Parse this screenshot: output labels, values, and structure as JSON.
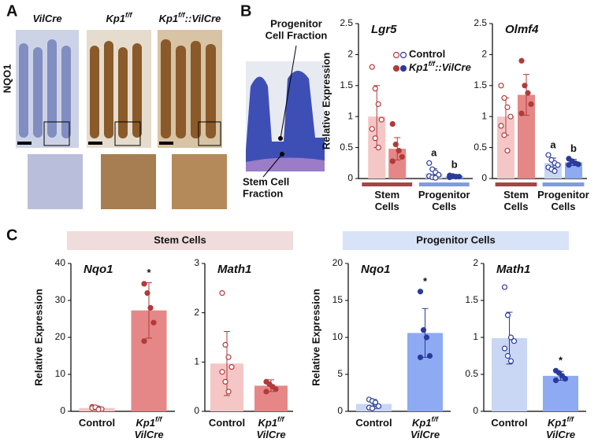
{
  "panel_labels": [
    "A",
    "B",
    "C"
  ],
  "panel_a": {
    "columns": [
      [
        "VilCre"
      ],
      [
        "Kp1",
        "f/f"
      ],
      [
        "Kp1",
        "f/f",
        "::VilCre"
      ]
    ],
    "row_label": "NQO1"
  },
  "schematic": {
    "progenitor_label": [
      "Progenitor",
      "Cell Fraction"
    ],
    "stem_label": [
      "Stem Cell",
      "Fraction"
    ]
  },
  "group_headers": [
    {
      "text": "Stem Cells",
      "color": "#f0dcdc"
    },
    {
      "text": "Progenitor Cells",
      "color": "#d9e3f7"
    }
  ],
  "chart_data": [
    {
      "type": "bar",
      "title": "Lgr5",
      "ylabel": "Relative  Expression",
      "legend": true,
      "categories": [
        [
          [
            "Stem"
          ],
          [
            "Cells"
          ]
        ],
        [
          [
            "Progenitor"
          ],
          [
            "Cells"
          ]
        ]
      ],
      "category_colors": [
        "#a84444",
        "#7f9ce0"
      ],
      "point_colors": [
        "#b23a3a",
        "#2b3a9c"
      ],
      "ylim": [
        0,
        2.5
      ],
      "yticks": [
        0,
        0.5,
        1,
        1.5,
        2,
        2.5
      ],
      "series": [
        {
          "name": [
            "Control"
          ],
          "colors": [
            "#f5c6c6",
            "#c9d6f4"
          ],
          "point_fill": [
            false,
            false
          ],
          "values": [
            1.0,
            0.08
          ],
          "errors": [
            0.5,
            0.08
          ],
          "points": [
            [
              1.8,
              1.45,
              1.2,
              0.95,
              0.8,
              0.65,
              0.5
            ],
            [
              0.25,
              0.15,
              0.1,
              0.06,
              0.04,
              0.02,
              0.01
            ]
          ],
          "annotations": [
            {
              "index": 1,
              "text": "a"
            }
          ]
        },
        {
          "name": [
            "Kp1",
            "f/f",
            "::VilCre"
          ],
          "colors": [
            "#e58787",
            "#8eaaf2"
          ],
          "point_fill": [
            true,
            true
          ],
          "values": [
            0.48,
            0.04
          ],
          "errors": [
            0.18,
            0.02
          ],
          "points": [
            [
              0.88,
              0.55,
              0.45,
              0.35,
              0.28
            ],
            [
              0.05,
              0.04,
              0.03,
              0.03,
              0.02
            ]
          ],
          "annotations": [
            {
              "index": 1,
              "text": "b"
            }
          ]
        }
      ]
    },
    {
      "type": "bar",
      "title": "Olmf4",
      "legend": false,
      "categories": [
        [
          [
            "Stem"
          ],
          [
            "Cells"
          ]
        ],
        [
          [
            "Progenitor"
          ],
          [
            "Cells"
          ]
        ]
      ],
      "category_colors": [
        "#a84444",
        "#7f9ce0"
      ],
      "point_colors": [
        "#b23a3a",
        "#2b3a9c"
      ],
      "ylim": [
        0,
        2.5
      ],
      "yticks": [
        0,
        0.5,
        1,
        1.5,
        2,
        2.5
      ],
      "series": [
        {
          "colors": [
            "#f5c6c6",
            "#c9d6f4"
          ],
          "point_fill": [
            false,
            false
          ],
          "values": [
            1.0,
            0.25
          ],
          "errors": [
            0.3,
            0.08
          ],
          "points": [
            [
              1.5,
              1.3,
              1.15,
              1.0,
              0.85,
              0.7,
              0.45
            ],
            [
              0.38,
              0.3,
              0.25,
              0.22,
              0.18,
              0.15,
              0.12
            ]
          ],
          "annotations": [
            {
              "index": 1,
              "text": "a"
            }
          ]
        },
        {
          "colors": [
            "#e58787",
            "#8eaaf2"
          ],
          "point_fill": [
            true,
            true
          ],
          "values": [
            1.35,
            0.26
          ],
          "errors": [
            0.33,
            0.05
          ],
          "points": [
            [
              1.9,
              1.5,
              1.38,
              1.2,
              1.05
            ],
            [
              0.32,
              0.28,
              0.25,
              0.23,
              0.22
            ]
          ],
          "annotations": [
            {
              "index": 1,
              "text": "b"
            }
          ]
        }
      ]
    },
    {
      "type": "bar",
      "title": "Nqo1",
      "ylabel": "Relative  Expression",
      "categories": [
        [
          [
            "Control"
          ]
        ],
        [
          [
            "Kp1",
            "f/f"
          ],
          [
            "VilCre"
          ]
        ]
      ],
      "point_colors": [
        "#b23a3a",
        "#b23a3a"
      ],
      "ylim": [
        0,
        40
      ],
      "yticks": [
        0,
        10,
        20,
        30,
        40
      ],
      "series": [
        {
          "colors": [
            "#f5c6c6",
            "#e58787"
          ],
          "point_fill": [
            false,
            true
          ],
          "values": [
            0.9,
            27.3
          ],
          "errors": [
            0.5,
            7.5
          ],
          "points": [
            [
              1.2,
              1.0,
              0.8,
              0.6,
              0.9,
              1.1,
              0.5
            ],
            [
              34.5,
              32,
              28,
              24,
              19
            ]
          ],
          "annotations": [
            {
              "index": 1,
              "text": "*"
            }
          ]
        }
      ]
    },
    {
      "type": "bar",
      "title": "Math1",
      "categories": [
        [
          [
            "Control"
          ]
        ],
        [
          [
            "Kp1",
            "f/f"
          ],
          [
            "VilCre"
          ]
        ]
      ],
      "point_colors": [
        "#b23a3a",
        "#b23a3a"
      ],
      "ylim": [
        0,
        3
      ],
      "yticks": [
        0,
        1,
        2,
        3
      ],
      "series": [
        {
          "colors": [
            "#f5c6c6",
            "#e58787"
          ],
          "point_fill": [
            false,
            true
          ],
          "values": [
            0.97,
            0.52
          ],
          "errors": [
            0.65,
            0.12
          ],
          "points": [
            [
              2.4,
              1.35,
              1.1,
              0.9,
              0.8,
              0.6,
              0.4
            ],
            [
              0.6,
              0.55,
              0.5,
              0.45,
              0.4
            ]
          ]
        }
      ]
    },
    {
      "type": "bar",
      "title": "Nqo1",
      "ylabel": "Relative  Expression",
      "categories": [
        [
          [
            "Control"
          ]
        ],
        [
          [
            "Kp1",
            "f/f"
          ],
          [
            "VilCre"
          ]
        ]
      ],
      "point_colors": [
        "#2b3a9c",
        "#2b3a9c"
      ],
      "ylim": [
        0,
        20
      ],
      "yticks": [
        0,
        5,
        10,
        15,
        20
      ],
      "series": [
        {
          "colors": [
            "#c9d6f4",
            "#8eaaf2"
          ],
          "point_fill": [
            false,
            true
          ],
          "values": [
            1.0,
            10.6
          ],
          "errors": [
            0.6,
            3.3
          ],
          "points": [
            [
              1.6,
              1.4,
              1.0,
              0.7,
              0.5,
              0.4,
              1.2
            ],
            [
              16.2,
              11,
              10,
              7.5,
              7.3
            ]
          ],
          "annotations": [
            {
              "index": 1,
              "text": "*"
            }
          ]
        }
      ]
    },
    {
      "type": "bar",
      "title": "Math1",
      "categories": [
        [
          [
            "Control"
          ]
        ],
        [
          [
            "Kp1",
            "f/f"
          ],
          [
            "VilCre"
          ]
        ]
      ],
      "point_colors": [
        "#2b3a9c",
        "#2b3a9c"
      ],
      "ylim": [
        0,
        2
      ],
      "yticks": [
        0,
        0.5,
        1,
        1.5,
        2
      ],
      "series": [
        {
          "colors": [
            "#c9d6f4",
            "#8eaaf2"
          ],
          "point_fill": [
            false,
            true
          ],
          "values": [
            0.99,
            0.48
          ],
          "errors": [
            0.35,
            0.06
          ],
          "points": [
            [
              1.68,
              1.3,
              1.0,
              0.95,
              0.85,
              0.75,
              0.68
            ],
            [
              0.55,
              0.52,
              0.48,
              0.44,
              0.42
            ]
          ],
          "annotations": [
            {
              "index": 1,
              "text": "*"
            }
          ]
        }
      ]
    }
  ]
}
